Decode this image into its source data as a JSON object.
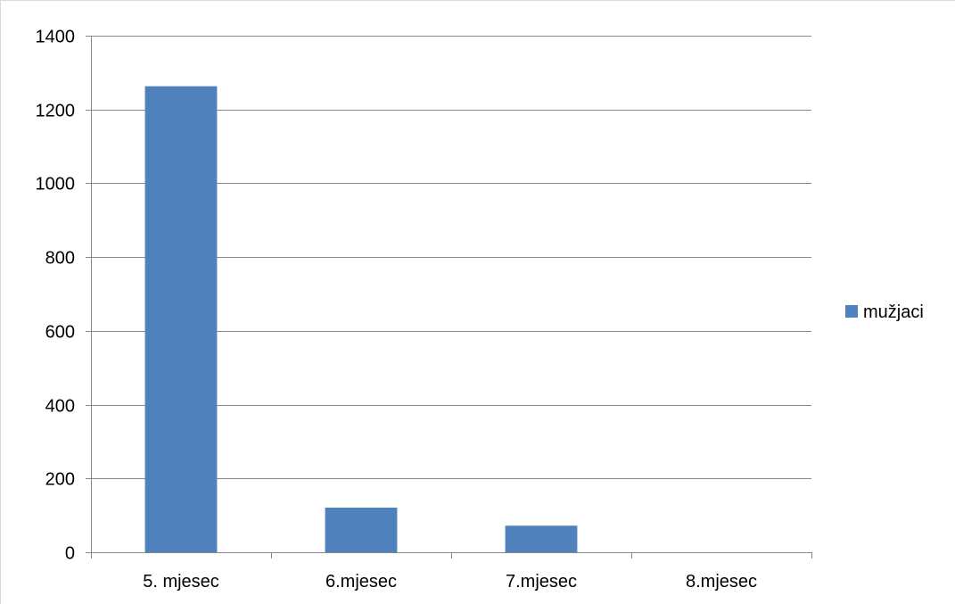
{
  "chart_data": {
    "type": "bar",
    "categories": [
      "5. mjesec",
      "6.mjesec",
      "7.mjesec",
      "8.mjesec"
    ],
    "series": [
      {
        "name": "mužjaci",
        "values": [
          1263,
          121,
          72,
          0
        ],
        "color": "#4f81bd"
      }
    ],
    "yticks": [
      0,
      200,
      400,
      600,
      800,
      1000,
      1200,
      1400
    ],
    "ylim": [
      0,
      1400
    ],
    "grid": true,
    "legend_position": "right",
    "title": "",
    "xlabel": "",
    "ylabel": ""
  },
  "colors": {
    "gridline": "#868686",
    "axis": "#868686",
    "bar": "#4f81bd"
  }
}
